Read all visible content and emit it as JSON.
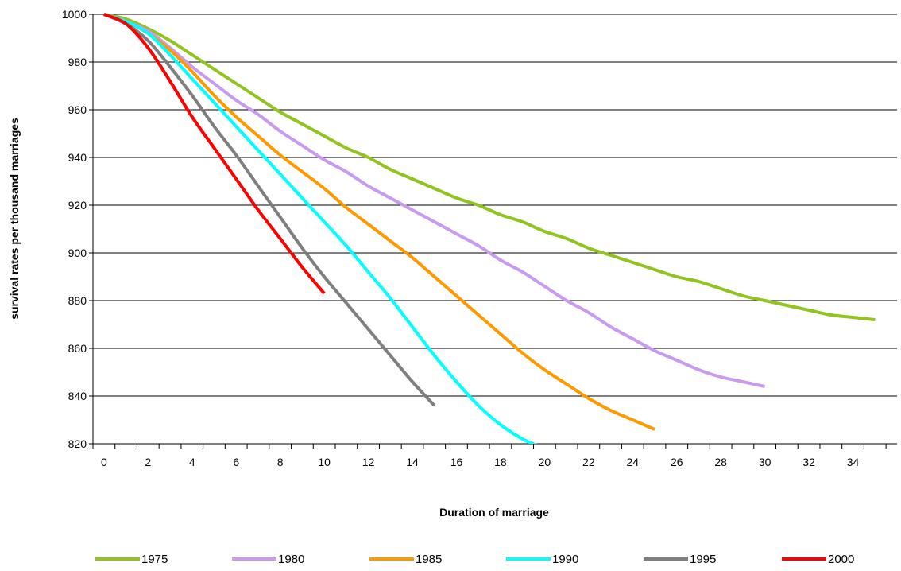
{
  "chart_data": {
    "type": "line",
    "title": "",
    "xlabel": "Duration of marriage",
    "ylabel": "survival rates per thousand marriages",
    "xlim": [
      -0.5,
      36
    ],
    "ylim": [
      820,
      1000
    ],
    "x_ticks": [
      0,
      2,
      4,
      6,
      8,
      10,
      12,
      14,
      16,
      18,
      20,
      22,
      24,
      26,
      28,
      30,
      32,
      34
    ],
    "y_ticks": [
      820,
      840,
      860,
      880,
      900,
      920,
      940,
      960,
      980,
      1000
    ],
    "grid": "horizontal",
    "legend_position": "bottom",
    "series": [
      {
        "name": "1975",
        "color": "#92C31F",
        "x": [
          0,
          1,
          2,
          3,
          4,
          5,
          6,
          7,
          8,
          9,
          10,
          11,
          12,
          13,
          14,
          15,
          16,
          17,
          18,
          19,
          20,
          21,
          22,
          23,
          24,
          25,
          26,
          27,
          28,
          29,
          30,
          31,
          32,
          33,
          34,
          35
        ],
        "values": [
          1000,
          998,
          994,
          989,
          983,
          977,
          971,
          965,
          959,
          954,
          949,
          944,
          940,
          935,
          931,
          927,
          923,
          920,
          916,
          913,
          909,
          906,
          902,
          899,
          896,
          893,
          890,
          888,
          885,
          882,
          880,
          878,
          876,
          874,
          873,
          872
        ]
      },
      {
        "name": "1980",
        "color": "#C89BF0",
        "x": [
          0,
          1,
          2,
          3,
          4,
          5,
          6,
          7,
          8,
          9,
          10,
          11,
          12,
          13,
          14,
          15,
          16,
          17,
          18,
          19,
          20,
          21,
          22,
          23,
          24,
          25,
          26,
          27,
          28,
          29,
          30
        ],
        "values": [
          1000,
          997,
          993,
          986,
          978,
          971,
          964,
          958,
          951,
          945,
          939,
          934,
          928,
          923,
          918,
          913,
          908,
          903,
          897,
          892,
          886,
          880,
          875,
          869,
          864,
          859,
          855,
          851,
          848,
          846,
          844
        ]
      },
      {
        "name": "1985",
        "color": "#FF9900",
        "x": [
          0,
          1,
          2,
          3,
          4,
          5,
          6,
          7,
          8,
          9,
          10,
          11,
          12,
          13,
          14,
          15,
          16,
          17,
          18,
          19,
          20,
          21,
          22,
          23,
          24,
          25
        ],
        "values": [
          1000,
          997,
          992,
          985,
          976,
          966,
          957,
          949,
          941,
          934,
          927,
          919,
          912,
          905,
          898,
          890,
          882,
          874,
          866,
          858,
          851,
          845,
          839,
          834,
          830,
          826
        ]
      },
      {
        "name": "1990",
        "color": "#00FFFF",
        "x": [
          0,
          1,
          2,
          3,
          4,
          5,
          6,
          7,
          8,
          9,
          10,
          11,
          12,
          13,
          14,
          15,
          16,
          17,
          18,
          19,
          20
        ],
        "values": [
          1000,
          997,
          992,
          983,
          973,
          963,
          953,
          943,
          933,
          923,
          913,
          903,
          892,
          881,
          869,
          857,
          846,
          836,
          828,
          822,
          818
        ]
      },
      {
        "name": "1995",
        "color": "#7F7F7F",
        "x": [
          0,
          1,
          2,
          3,
          4,
          5,
          6,
          7,
          8,
          9,
          10,
          11,
          12,
          13,
          14,
          15
        ],
        "values": [
          1000,
          996,
          989,
          978,
          966,
          953,
          941,
          928,
          915,
          902,
          890,
          879,
          868,
          857,
          846,
          836
        ]
      },
      {
        "name": "2000",
        "color": "#FF0000",
        "x": [
          0,
          1,
          2,
          3,
          4,
          5,
          6,
          7,
          8,
          9,
          10
        ],
        "values": [
          1000,
          996,
          986,
          972,
          957,
          944,
          931,
          918,
          906,
          894,
          883
        ]
      }
    ]
  }
}
